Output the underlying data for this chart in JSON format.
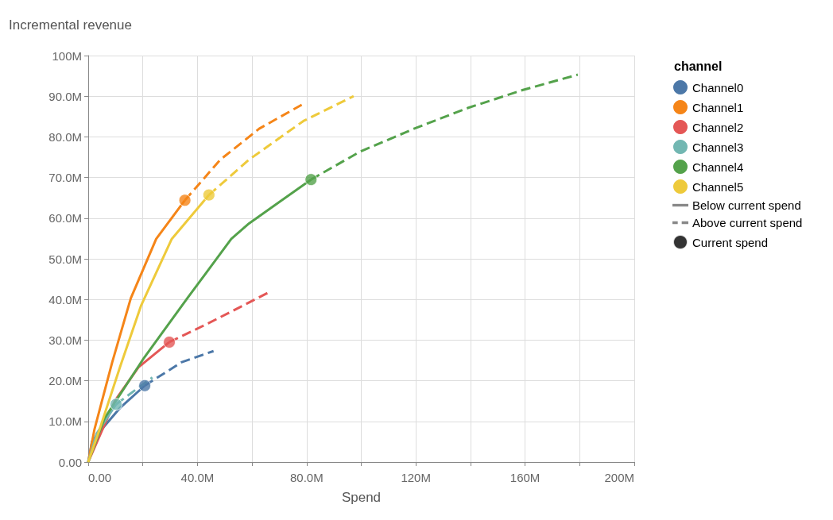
{
  "chart_data": {
    "type": "line",
    "ylabel": "Incremental revenue",
    "xlabel": "Spend",
    "legend_title": "channel",
    "legend": "top right",
    "grid": true,
    "xlim": [
      0,
      200000000
    ],
    "ylim": [
      0,
      100000000
    ],
    "xticks": [
      {
        "value": 0,
        "label": "0.00"
      },
      {
        "value": 20000000,
        "label": null
      },
      {
        "value": 40000000,
        "label": "40.0M"
      },
      {
        "value": 60000000,
        "label": null
      },
      {
        "value": 80000000,
        "label": "80.0M"
      },
      {
        "value": 100000000,
        "label": null
      },
      {
        "value": 120000000,
        "label": "120M"
      },
      {
        "value": 140000000,
        "label": null
      },
      {
        "value": 160000000,
        "label": "160M"
      },
      {
        "value": 180000000,
        "label": null
      },
      {
        "value": 200000000,
        "label": "200M"
      }
    ],
    "yticks": [
      {
        "value": 0,
        "label": "0.00"
      },
      {
        "value": 10000000,
        "label": "10.0M"
      },
      {
        "value": 20000000,
        "label": "20.0M"
      },
      {
        "value": 30000000,
        "label": "30.0M"
      },
      {
        "value": 40000000,
        "label": "40.0M"
      },
      {
        "value": 50000000,
        "label": "50.0M"
      },
      {
        "value": 60000000,
        "label": "60.0M"
      },
      {
        "value": 70000000,
        "label": "70.0M"
      },
      {
        "value": 80000000,
        "label": "80.0M"
      },
      {
        "value": 90000000,
        "label": "90.0M"
      },
      {
        "value": 100000000,
        "label": "100M"
      }
    ],
    "series": [
      {
        "name": "Channel0",
        "color": "#4c78a8",
        "type": "line",
        "line_style": "solid",
        "x": [
          0,
          1400000,
          6000000,
          11600000,
          20700000
        ],
        "values": [
          0,
          5100000,
          8900000,
          13300000,
          18800000
        ]
      },
      {
        "color": "#4c78a8",
        "type": "line",
        "line_style": "dashed",
        "x": [
          20700000,
          34300000,
          45900000
        ],
        "values": [
          18800000,
          24600000,
          27300000
        ]
      },
      {
        "name": "Channel1",
        "color": "#f58518",
        "type": "line",
        "line_style": "solid",
        "x": [
          0,
          2300000,
          8800000,
          15600000,
          24900000,
          35400000
        ],
        "values": [
          0,
          8100000,
          24600000,
          40300000,
          54900000,
          64400000
        ]
      },
      {
        "color": "#f58518",
        "type": "line",
        "line_style": "dashed",
        "x": [
          35400000,
          48400000,
          62600000,
          78200000
        ],
        "values": [
          64400000,
          74400000,
          82000000,
          87900000
        ]
      },
      {
        "name": "Channel2",
        "color": "#e45756",
        "type": "line",
        "line_style": "solid",
        "x": [
          0,
          9900000,
          18400000,
          29700000
        ],
        "values": [
          0,
          15200000,
          23300000,
          29500000
        ]
      },
      {
        "color": "#e45756",
        "type": "line",
        "line_style": "dashed",
        "x": [
          29700000,
          43900000,
          66000000
        ],
        "values": [
          29500000,
          34100000,
          41700000
        ]
      },
      {
        "name": "Channel3",
        "color": "#72b7b2",
        "type": "line",
        "line_style": "solid",
        "x": [
          0,
          3100000,
          10200000
        ],
        "values": [
          0,
          7000000,
          14200000
        ]
      },
      {
        "color": "#72b7b2",
        "type": "line",
        "line_style": "dashed",
        "x": [
          10200000,
          17000000,
          23500000
        ],
        "values": [
          14200000,
          17600000,
          20800000
        ]
      },
      {
        "name": "Channel4",
        "color": "#54a24b",
        "type": "line",
        "line_style": "solid",
        "x": [
          0,
          6000000,
          20000000,
          36300000,
          52400000,
          58900000,
          81600000
        ],
        "values": [
          0,
          10800000,
          25200000,
          40300000,
          54900000,
          58700000,
          69500000
        ]
      },
      {
        "color": "#54a24b",
        "type": "line",
        "line_style": "dashed",
        "x": [
          81600000,
          99400000,
          119300000,
          139000000,
          159000000,
          179300000
        ],
        "values": [
          69500000,
          76300000,
          82000000,
          87100000,
          91500000,
          95300000
        ]
      },
      {
        "name": "Channel5",
        "color": "#eeca3b",
        "type": "line",
        "line_style": "solid",
        "x": [
          0,
          4200000,
          11600000,
          19300000,
          30600000,
          44200000
        ],
        "values": [
          0,
          8100000,
          23300000,
          38400000,
          54900000,
          65700000
        ]
      },
      {
        "color": "#eeca3b",
        "type": "line",
        "line_style": "dashed",
        "x": [
          44200000,
          58900000,
          78800000,
          97200000
        ],
        "values": [
          65700000,
          74400000,
          83900000,
          90000000
        ]
      },
      {
        "color": "#4c78a8",
        "type": "scatter",
        "marker": "circle",
        "x": [
          20700000
        ],
        "values": [
          18800000
        ]
      },
      {
        "color": "#f58518",
        "type": "scatter",
        "marker": "circle",
        "x": [
          35400000
        ],
        "values": [
          64400000
        ]
      },
      {
        "color": "#e45756",
        "type": "scatter",
        "marker": "circle",
        "x": [
          29700000
        ],
        "values": [
          29500000
        ]
      },
      {
        "color": "#72b7b2",
        "type": "scatter",
        "marker": "circle",
        "x": [
          10200000
        ],
        "values": [
          14200000
        ]
      },
      {
        "color": "#54a24b",
        "type": "scatter",
        "marker": "circle",
        "x": [
          81600000
        ],
        "values": [
          69500000
        ]
      },
      {
        "color": "#eeca3b",
        "type": "scatter",
        "marker": "circle",
        "x": [
          44200000
        ],
        "values": [
          65700000
        ]
      },
      {
        "name": "Below current spend",
        "color": "#888888",
        "line_style": "solid"
      },
      {
        "name": "Above current spend",
        "color": "#888888",
        "line_style": "dashed"
      },
      {
        "name": "Current spend",
        "color": "#000000",
        "type": "scatter",
        "marker": "circle"
      }
    ]
  }
}
